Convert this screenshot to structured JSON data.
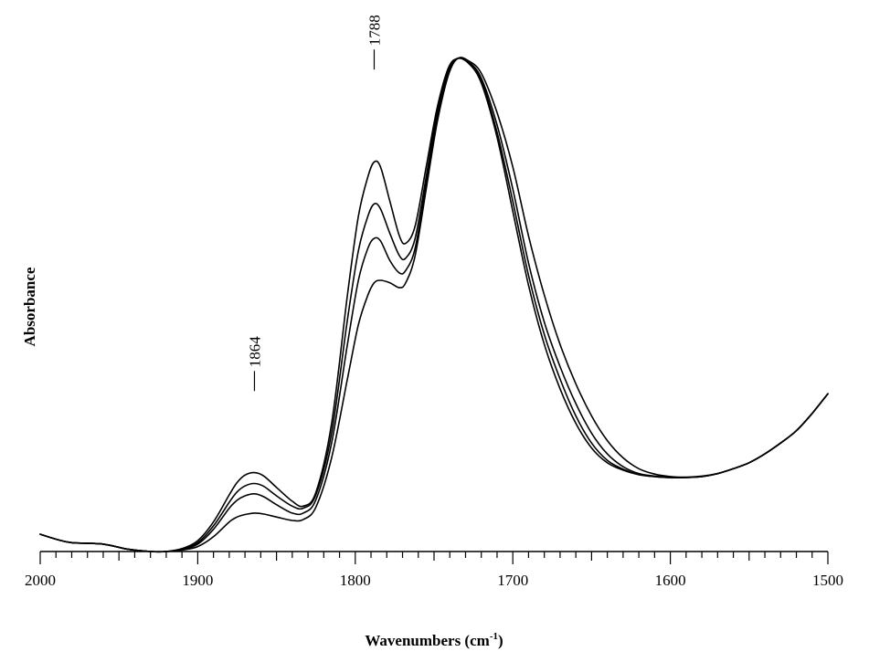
{
  "chart_data": {
    "type": "line",
    "title": "",
    "xlabel": "Wavenumbers (cm",
    "xlabel_sup": "-1",
    "xlabel_close": ")",
    "ylabel": "Absorbance",
    "xlim": [
      2000,
      1500
    ],
    "ylim": [
      0,
      1
    ],
    "x_reversed": true,
    "grid": false,
    "x_ticks": [
      "2000",
      "1900",
      "1800",
      "1700",
      "1600",
      "1500"
    ],
    "x_tick_values": [
      2000,
      1900,
      1800,
      1700,
      1600,
      1500
    ],
    "minor_tick_step": 10,
    "annotations": [
      {
        "text": "1864",
        "x": 1864,
        "y": 0.318
      },
      {
        "text": "1788",
        "x": 1788,
        "y": 0.97
      }
    ],
    "series": [
      {
        "x": [
          2000,
          1990,
          1980,
          1960,
          1945,
          1930,
          1920,
          1910,
          1900,
          1890,
          1880,
          1875,
          1870,
          1864,
          1858,
          1850,
          1840,
          1833,
          1825,
          1815,
          1805,
          1798,
          1792,
          1788,
          1784,
          1778,
          1772,
          1768,
          1762,
          1755,
          1748,
          1741,
          1735,
          1728,
          1720,
          1710,
          1700,
          1690,
          1680,
          1670,
          1660,
          1650,
          1640,
          1630,
          1620,
          1610,
          1600,
          1590,
          1580,
          1570,
          1560,
          1550,
          1540,
          1530,
          1520,
          1510,
          1500
        ],
        "y": [
          0.035,
          0.025,
          0.018,
          0.015,
          0.005,
          0.0,
          0.0,
          0.006,
          0.022,
          0.06,
          0.115,
          0.14,
          0.155,
          0.16,
          0.153,
          0.13,
          0.102,
          0.092,
          0.12,
          0.26,
          0.52,
          0.68,
          0.76,
          0.79,
          0.78,
          0.71,
          0.64,
          0.625,
          0.66,
          0.78,
          0.9,
          0.98,
          1.0,
          0.99,
          0.95,
          0.84,
          0.69,
          0.54,
          0.42,
          0.33,
          0.26,
          0.21,
          0.18,
          0.165,
          0.156,
          0.152,
          0.15,
          0.15,
          0.152,
          0.158,
          0.168,
          0.18,
          0.198,
          0.22,
          0.245,
          0.28,
          0.32
        ]
      },
      {
        "x": [
          2000,
          1990,
          1980,
          1960,
          1945,
          1930,
          1920,
          1910,
          1900,
          1890,
          1880,
          1875,
          1870,
          1864,
          1858,
          1850,
          1840,
          1833,
          1825,
          1815,
          1805,
          1798,
          1792,
          1788,
          1784,
          1778,
          1772,
          1768,
          1762,
          1755,
          1748,
          1741,
          1735,
          1728,
          1720,
          1710,
          1700,
          1690,
          1680,
          1670,
          1660,
          1650,
          1640,
          1630,
          1620,
          1610,
          1600,
          1590,
          1580,
          1570,
          1560,
          1550,
          1540,
          1530,
          1520,
          1510,
          1500
        ],
        "y": [
          0.035,
          0.025,
          0.018,
          0.015,
          0.005,
          0.0,
          0.0,
          0.005,
          0.018,
          0.052,
          0.1,
          0.121,
          0.133,
          0.138,
          0.132,
          0.113,
          0.092,
          0.088,
          0.115,
          0.24,
          0.47,
          0.61,
          0.68,
          0.705,
          0.695,
          0.645,
          0.6,
          0.595,
          0.635,
          0.76,
          0.89,
          0.975,
          1.0,
          0.99,
          0.955,
          0.85,
          0.71,
          0.56,
          0.44,
          0.35,
          0.275,
          0.22,
          0.185,
          0.167,
          0.156,
          0.152,
          0.15,
          0.15,
          0.152,
          0.158,
          0.168,
          0.18,
          0.198,
          0.22,
          0.245,
          0.28,
          0.32
        ]
      },
      {
        "x": [
          2000,
          1990,
          1980,
          1960,
          1945,
          1930,
          1920,
          1910,
          1900,
          1890,
          1880,
          1875,
          1870,
          1864,
          1858,
          1850,
          1840,
          1833,
          1825,
          1815,
          1805,
          1798,
          1792,
          1788,
          1784,
          1778,
          1772,
          1768,
          1762,
          1755,
          1748,
          1741,
          1735,
          1728,
          1720,
          1710,
          1700,
          1690,
          1680,
          1670,
          1660,
          1650,
          1640,
          1630,
          1620,
          1610,
          1600,
          1590,
          1580,
          1570,
          1560,
          1550,
          1540,
          1530,
          1520,
          1510,
          1500
        ],
        "y": [
          0.035,
          0.025,
          0.018,
          0.015,
          0.005,
          0.0,
          0.0,
          0.004,
          0.015,
          0.045,
          0.088,
          0.104,
          0.113,
          0.117,
          0.111,
          0.095,
          0.078,
          0.078,
          0.105,
          0.22,
          0.42,
          0.55,
          0.615,
          0.635,
          0.63,
          0.59,
          0.565,
          0.57,
          0.615,
          0.745,
          0.88,
          0.97,
          1.0,
          0.993,
          0.96,
          0.865,
          0.735,
          0.585,
          0.465,
          0.375,
          0.3,
          0.24,
          0.198,
          0.172,
          0.158,
          0.153,
          0.15,
          0.15,
          0.152,
          0.158,
          0.168,
          0.18,
          0.198,
          0.22,
          0.245,
          0.28,
          0.32
        ]
      },
      {
        "x": [
          2000,
          1990,
          1980,
          1960,
          1945,
          1930,
          1920,
          1910,
          1900,
          1890,
          1880,
          1875,
          1870,
          1864,
          1858,
          1850,
          1840,
          1833,
          1825,
          1815,
          1805,
          1798,
          1792,
          1788,
          1784,
          1778,
          1772,
          1768,
          1762,
          1755,
          1748,
          1741,
          1735,
          1728,
          1720,
          1710,
          1700,
          1690,
          1680,
          1670,
          1660,
          1650,
          1640,
          1630,
          1620,
          1610,
          1600,
          1590,
          1580,
          1570,
          1560,
          1550,
          1540,
          1530,
          1520,
          1510,
          1500
        ],
        "y": [
          0.035,
          0.025,
          0.018,
          0.015,
          0.005,
          0.0,
          0.0,
          0.003,
          0.01,
          0.03,
          0.06,
          0.07,
          0.075,
          0.078,
          0.076,
          0.07,
          0.063,
          0.065,
          0.09,
          0.19,
          0.35,
          0.46,
          0.52,
          0.545,
          0.55,
          0.545,
          0.535,
          0.545,
          0.6,
          0.735,
          0.87,
          0.965,
          1.0,
          0.995,
          0.97,
          0.89,
          0.78,
          0.64,
          0.52,
          0.42,
          0.34,
          0.275,
          0.225,
          0.19,
          0.168,
          0.157,
          0.152,
          0.151,
          0.153,
          0.158,
          0.168,
          0.18,
          0.198,
          0.22,
          0.245,
          0.28,
          0.32
        ]
      }
    ]
  }
}
